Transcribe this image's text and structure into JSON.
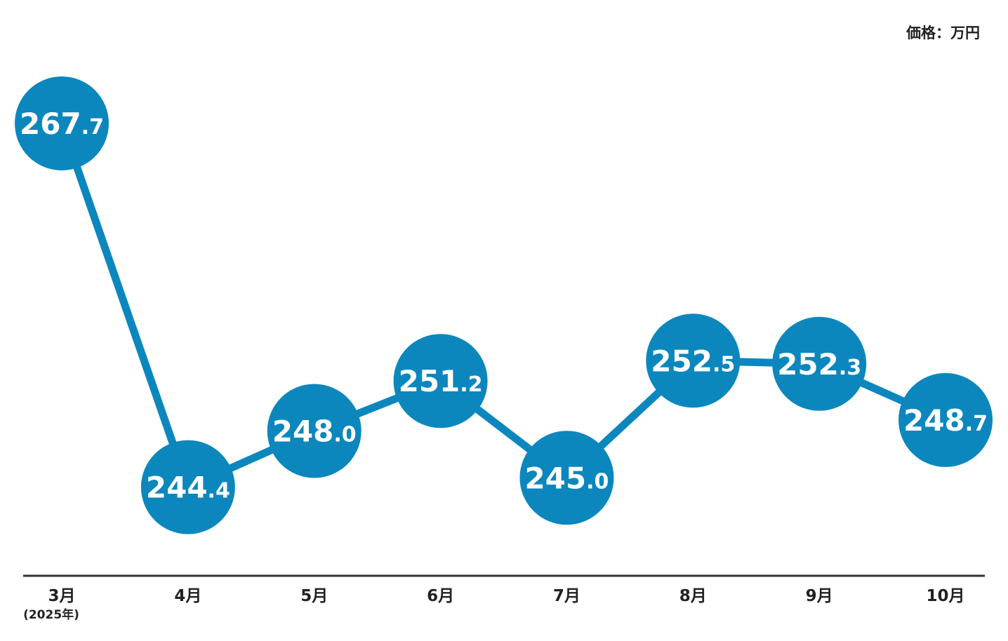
{
  "unit_label": "価格：万円",
  "colors": {
    "line": "#0b87be",
    "marker": "#0b87be",
    "marker_text": "#ffffff",
    "axis": "#333333",
    "tick_text": "#222222"
  },
  "chart_data": {
    "type": "line",
    "categories": [
      "3月",
      "4月",
      "5月",
      "6月",
      "7月",
      "8月",
      "9月",
      "10月"
    ],
    "category_sublabels": [
      "(2025年)",
      "",
      "",
      "",
      "",
      "",
      "",
      ""
    ],
    "values": [
      267.7,
      244.4,
      248.0,
      251.2,
      245.0,
      252.5,
      252.3,
      248.7
    ],
    "value_labels": [
      {
        "int": "267",
        "dec": ".7"
      },
      {
        "int": "244",
        "dec": ".4"
      },
      {
        "int": "248",
        "dec": ".0"
      },
      {
        "int": "251",
        "dec": ".2"
      },
      {
        "int": "245",
        "dec": ".0"
      },
      {
        "int": "252",
        "dec": ".5"
      },
      {
        "int": "252",
        "dec": ".3"
      },
      {
        "int": "248",
        "dec": ".7"
      }
    ],
    "title": "",
    "xlabel": "",
    "ylabel": "",
    "ylim": [
      242.9,
      269.9
    ],
    "grid": false
  }
}
